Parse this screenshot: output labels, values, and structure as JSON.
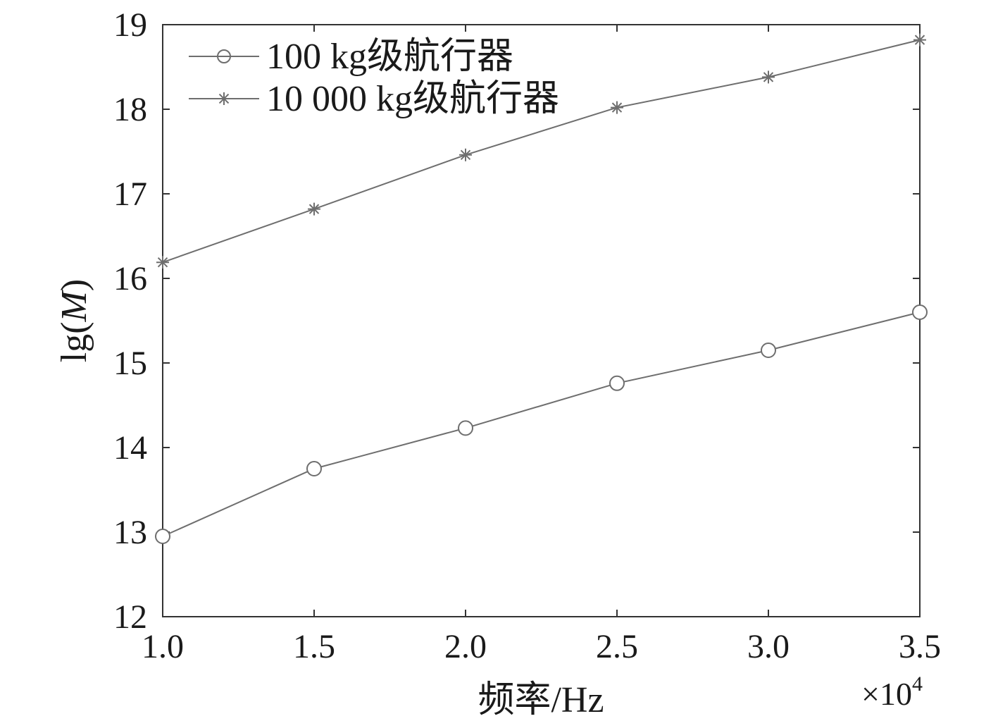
{
  "chart_data": {
    "type": "line",
    "title": "",
    "xlabel": "频率/Hz",
    "ylabel_prefix": "lg(",
    "ylabel_var": "M",
    "ylabel_suffix": ")",
    "x_multiplier_label": "×10",
    "x_multiplier_exp": "4",
    "xlim": [
      1.0,
      3.5
    ],
    "ylim": [
      12,
      19
    ],
    "x_ticks": [
      "1.0",
      "1.5",
      "2.0",
      "2.5",
      "3.0",
      "3.5"
    ],
    "y_ticks": [
      "12",
      "13",
      "14",
      "15",
      "16",
      "17",
      "18",
      "19"
    ],
    "x": [
      1.0,
      1.5,
      2.0,
      2.5,
      3.0,
      3.5
    ],
    "grid": false,
    "legend_position": "top-left",
    "line_color": "#6e6e6e",
    "series": [
      {
        "name": "100 kg级航行器",
        "marker": "circle",
        "values": [
          12.95,
          13.75,
          14.23,
          14.76,
          15.15,
          15.6
        ]
      },
      {
        "name": "10 000 kg级航行器",
        "marker": "star",
        "values": [
          16.19,
          16.82,
          17.46,
          18.02,
          18.38,
          18.82
        ]
      }
    ]
  }
}
